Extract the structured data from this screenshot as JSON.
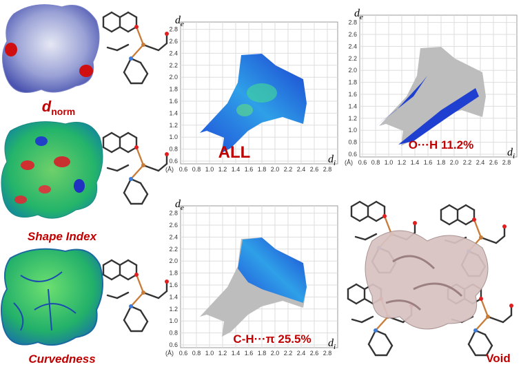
{
  "surfaces": [
    {
      "label_symbol": "d",
      "label_subscript": "norm"
    },
    {
      "label": "Shape Index"
    },
    {
      "label": "Curvedness"
    }
  ],
  "fingerprint_axes": {
    "ticks": [
      "0.6",
      "0.8",
      "1.0",
      "1.2",
      "1.4",
      "1.6",
      "1.8",
      "2.0",
      "2.2",
      "2.4",
      "2.6",
      "2.8"
    ],
    "unit": "(Å)",
    "y_symbol": "d",
    "y_subscript": "e",
    "x_symbol": "d",
    "x_subscript": "i"
  },
  "fingerprint_plots": [
    {
      "label": "ALL"
    },
    {
      "label": "O···H 11.2%"
    },
    {
      "label": "C-H···π 25.5%"
    }
  ],
  "void_label": "Void"
}
